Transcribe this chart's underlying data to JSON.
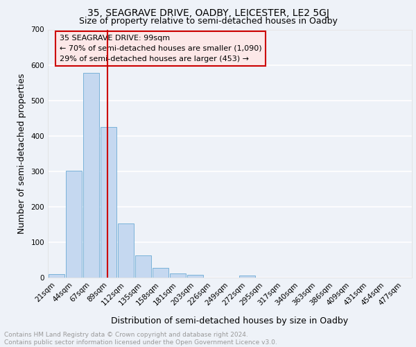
{
  "title1": "35, SEAGRAVE DRIVE, OADBY, LEICESTER, LE2 5GJ",
  "title2": "Size of property relative to semi-detached houses in Oadby",
  "xlabel": "Distribution of semi-detached houses by size in Oadby",
  "ylabel": "Number of semi-detached properties",
  "bar_labels": [
    "21sqm",
    "44sqm",
    "67sqm",
    "89sqm",
    "112sqm",
    "135sqm",
    "158sqm",
    "181sqm",
    "203sqm",
    "226sqm",
    "249sqm",
    "272sqm",
    "295sqm",
    "317sqm",
    "340sqm",
    "363sqm",
    "386sqm",
    "409sqm",
    "431sqm",
    "454sqm",
    "477sqm"
  ],
  "bar_heights": [
    10,
    302,
    577,
    425,
    152,
    62,
    27,
    12,
    7,
    0,
    0,
    6,
    0,
    0,
    0,
    0,
    0,
    0,
    0,
    0,
    0
  ],
  "bar_color": "#c5d8f0",
  "bar_edge_color": "#6aaad4",
  "annotation_line1": "35 SEAGRAVE DRIVE: 99sqm",
  "annotation_line2": "← 70% of semi-detached houses are smaller (1,090)",
  "annotation_line3": "29% of semi-detached houses are larger (453) →",
  "vline_color": "#cc0000",
  "ylim": [
    0,
    700
  ],
  "yticks": [
    0,
    100,
    200,
    300,
    400,
    500,
    600,
    700
  ],
  "footer_line1": "Contains HM Land Registry data © Crown copyright and database right 2024.",
  "footer_line2": "Contains public sector information licensed under the Open Government Licence v3.0.",
  "background_color": "#eef2f8",
  "plot_bg_color": "#eef2f8",
  "grid_color": "#ffffff",
  "title1_fontsize": 10,
  "title2_fontsize": 9,
  "axis_label_fontsize": 9,
  "tick_fontsize": 7.5,
  "annotation_fontsize": 8,
  "footer_fontsize": 6.5
}
